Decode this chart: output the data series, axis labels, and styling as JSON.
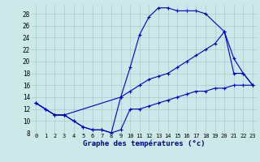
{
  "xlabel": "Graphe des températures (°c)",
  "background_color": "#cce8e8",
  "line_color": "#0000cc",
  "grid_color": "#aacccc",
  "xlim": [
    -0.5,
    23.5
  ],
  "ylim": [
    8,
    29.5
  ],
  "yticks": [
    8,
    10,
    12,
    14,
    16,
    18,
    20,
    22,
    24,
    26,
    28
  ],
  "xticks": [
    0,
    1,
    2,
    3,
    4,
    5,
    6,
    7,
    8,
    9,
    10,
    11,
    12,
    13,
    14,
    15,
    16,
    17,
    18,
    19,
    20,
    21,
    22,
    23
  ],
  "line1_x": [
    0,
    1,
    2,
    3,
    4,
    5,
    6,
    7,
    8,
    9,
    10,
    11,
    12,
    13,
    14,
    15,
    16,
    17,
    18,
    19,
    20,
    21,
    22,
    23
  ],
  "line1_y": [
    13,
    12,
    11,
    11,
    10,
    9,
    8.5,
    8.5,
    8,
    8.5,
    12,
    12,
    12.5,
    13,
    13.5,
    14,
    14.5,
    15,
    15,
    15.5,
    15.5,
    16,
    16,
    16
  ],
  "line2_x": [
    0,
    1,
    2,
    3,
    4,
    5,
    6,
    7,
    8,
    9,
    10,
    11,
    12,
    13,
    14,
    15,
    16,
    17,
    18,
    20,
    21,
    22,
    23
  ],
  "line2_y": [
    13,
    12,
    11,
    11,
    10,
    9,
    8.5,
    8.5,
    8,
    14,
    19,
    24.5,
    27.5,
    29,
    29,
    28.5,
    28.5,
    28.5,
    28,
    25,
    18,
    18,
    16
  ],
  "line3_x": [
    0,
    2,
    3,
    9,
    10,
    11,
    12,
    13,
    14,
    15,
    16,
    17,
    18,
    19,
    20,
    21,
    22,
    23
  ],
  "line3_y": [
    13,
    11,
    11,
    14,
    15,
    16,
    17,
    17.5,
    18,
    19,
    20,
    21,
    22,
    23,
    25,
    20.5,
    18,
    16
  ]
}
